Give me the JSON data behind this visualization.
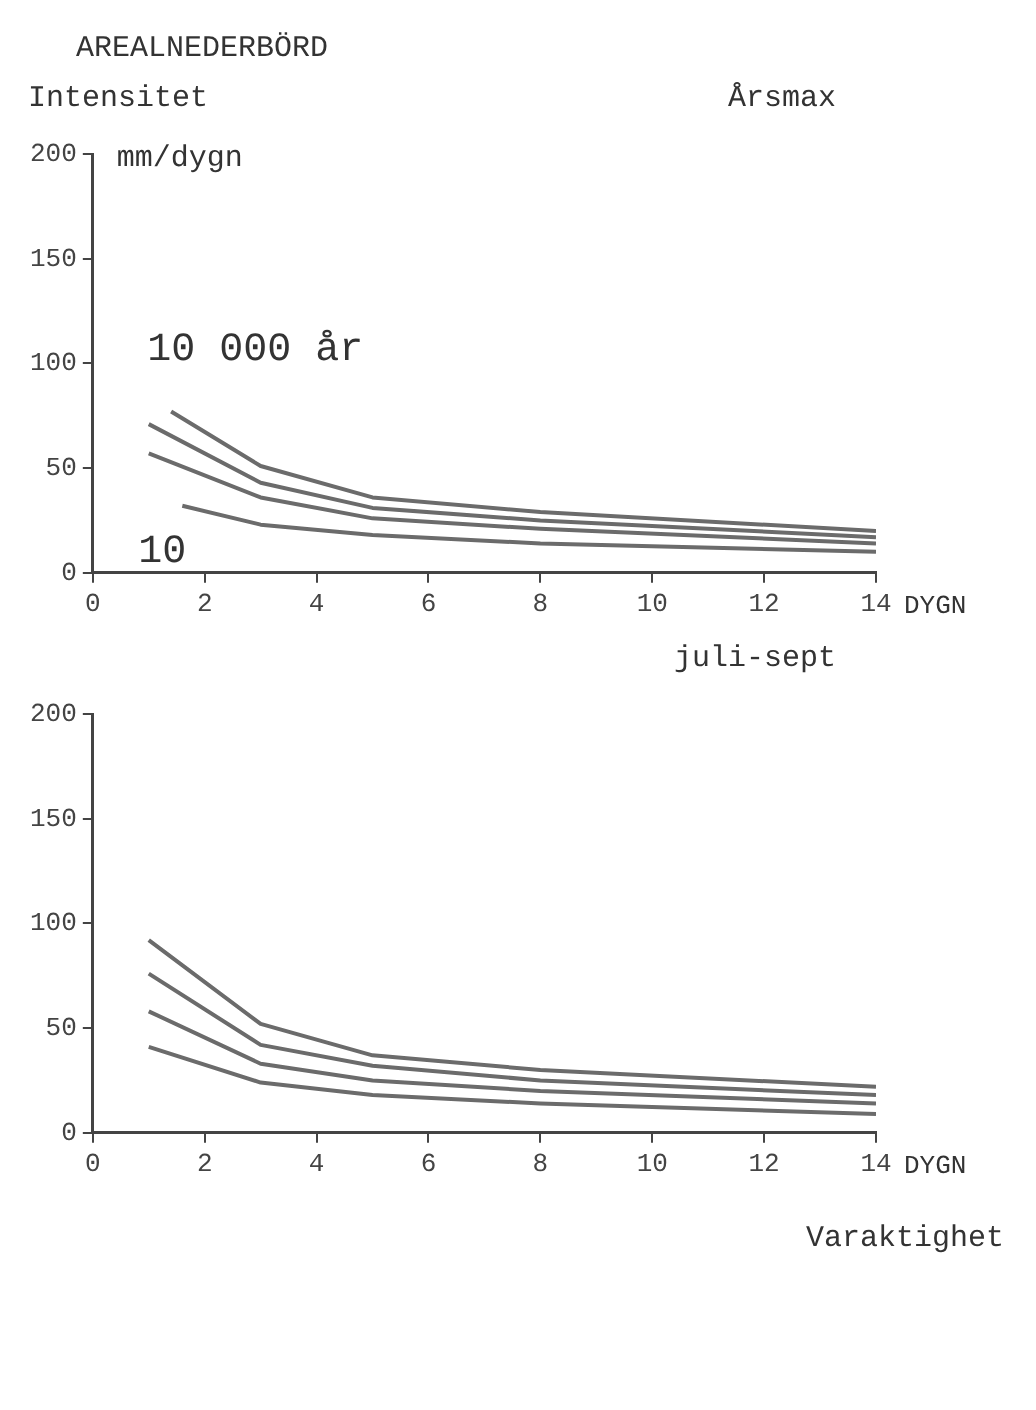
{
  "chart_data": [
    {
      "type": "line",
      "title": "AREALNEDERBÖRD",
      "subtitle": "Årsmax",
      "ylabel": "Intensitet",
      "xlabel": "DYGN",
      "annotations": [
        "mm/dygn"
      ],
      "x": [
        1,
        3,
        5,
        8,
        14
      ],
      "xlim": [
        0,
        14
      ],
      "xticks": [
        0,
        2,
        4,
        6,
        8,
        10,
        12,
        14
      ],
      "ylim": [
        0,
        200
      ],
      "yticks": [
        0,
        50,
        100,
        150,
        200
      ],
      "grid": false,
      "legend": false,
      "marker": "none",
      "line_style": "solid",
      "series": [
        {
          "name": "10 000 år",
          "color": "#6b6b6b",
          "x": [
            1.4,
            3,
            5,
            8,
            14
          ],
          "values": [
            77,
            51,
            36,
            29,
            20
          ]
        },
        {
          "color": "#6b6b6b",
          "values": [
            71,
            43,
            31,
            25,
            17
          ]
        },
        {
          "color": "#6b6b6b",
          "values": [
            57,
            36,
            26,
            21,
            14
          ]
        },
        {
          "name": "10",
          "color": "#6b6b6b",
          "x": [
            1.6,
            3,
            5,
            8,
            14
          ],
          "values": [
            32,
            23,
            18,
            14,
            10
          ]
        }
      ]
    },
    {
      "type": "line",
      "subtitle": "juli-sept",
      "xlabel": "DYGN",
      "annotations": [
        "Varaktighet"
      ],
      "x": [
        1,
        3,
        5,
        8,
        14
      ],
      "xlim": [
        0,
        14
      ],
      "xticks": [
        0,
        2,
        4,
        6,
        8,
        10,
        12,
        14
      ],
      "ylim": [
        0,
        200
      ],
      "yticks": [
        0,
        50,
        100,
        150,
        200
      ],
      "grid": false,
      "legend": false,
      "marker": "none",
      "line_style": "solid",
      "series": [
        {
          "color": "#6b6b6b",
          "values": [
            92,
            52,
            37,
            30,
            22
          ]
        },
        {
          "color": "#6b6b6b",
          "values": [
            76,
            42,
            32,
            25,
            18
          ]
        },
        {
          "color": "#6b6b6b",
          "values": [
            58,
            33,
            25,
            20,
            14
          ]
        },
        {
          "color": "#6b6b6b",
          "values": [
            41,
            24,
            18,
            14,
            9
          ]
        }
      ]
    }
  ]
}
